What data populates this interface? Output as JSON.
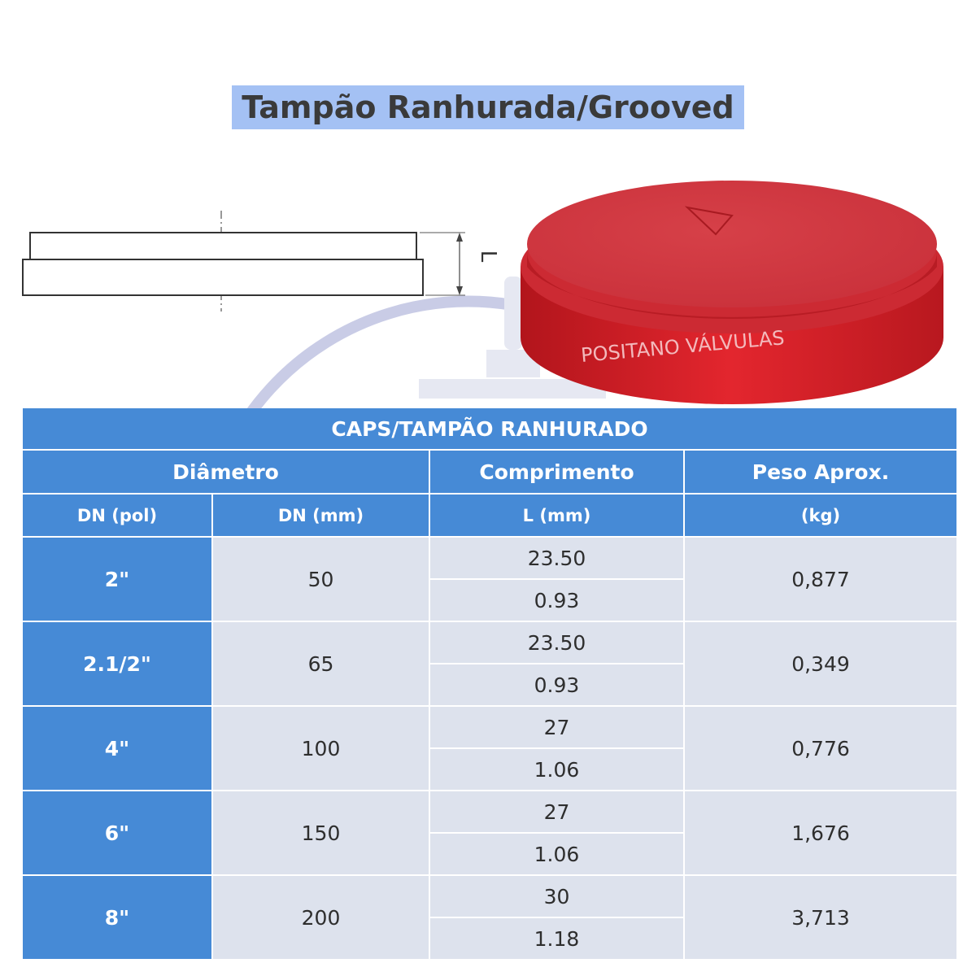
{
  "title": "Tampão Ranhurada/Grooved",
  "drawing": {
    "dimension_label": "L"
  },
  "product": {
    "brand": "POSITANO VÁLVULAS",
    "color": "#e2262d"
  },
  "table": {
    "title": "CAPS/TAMPÃO RANHURADO",
    "group_headers": {
      "diameter": "Diâmetro",
      "length": "Comprimento",
      "weight": "Peso Aprox."
    },
    "sub_headers": {
      "dn_pol": "DN (pol)",
      "dn_mm": "DN (mm)",
      "length_unit": "L (mm)",
      "weight_unit": "(kg)"
    },
    "rows": [
      {
        "dn_pol": "2\"",
        "dn_mm": "50",
        "length_mm": "23.50",
        "length_in": "0.93",
        "weight": "0,877"
      },
      {
        "dn_pol": "2.1/2\"",
        "dn_mm": "65",
        "length_mm": "23.50",
        "length_in": "0.93",
        "weight": "0,349"
      },
      {
        "dn_pol": "4\"",
        "dn_mm": "100",
        "length_mm": "27",
        "length_in": "1.06",
        "weight": "0,776"
      },
      {
        "dn_pol": "6\"",
        "dn_mm": "150",
        "length_mm": "27",
        "length_in": "1.06",
        "weight": "1,676"
      },
      {
        "dn_pol": "8\"",
        "dn_mm": "200",
        "length_mm": "30",
        "length_in": "1.18",
        "weight": "3,713"
      }
    ],
    "colors": {
      "header_bg": "#468ad6",
      "cell_bg": "#d8deea"
    }
  }
}
